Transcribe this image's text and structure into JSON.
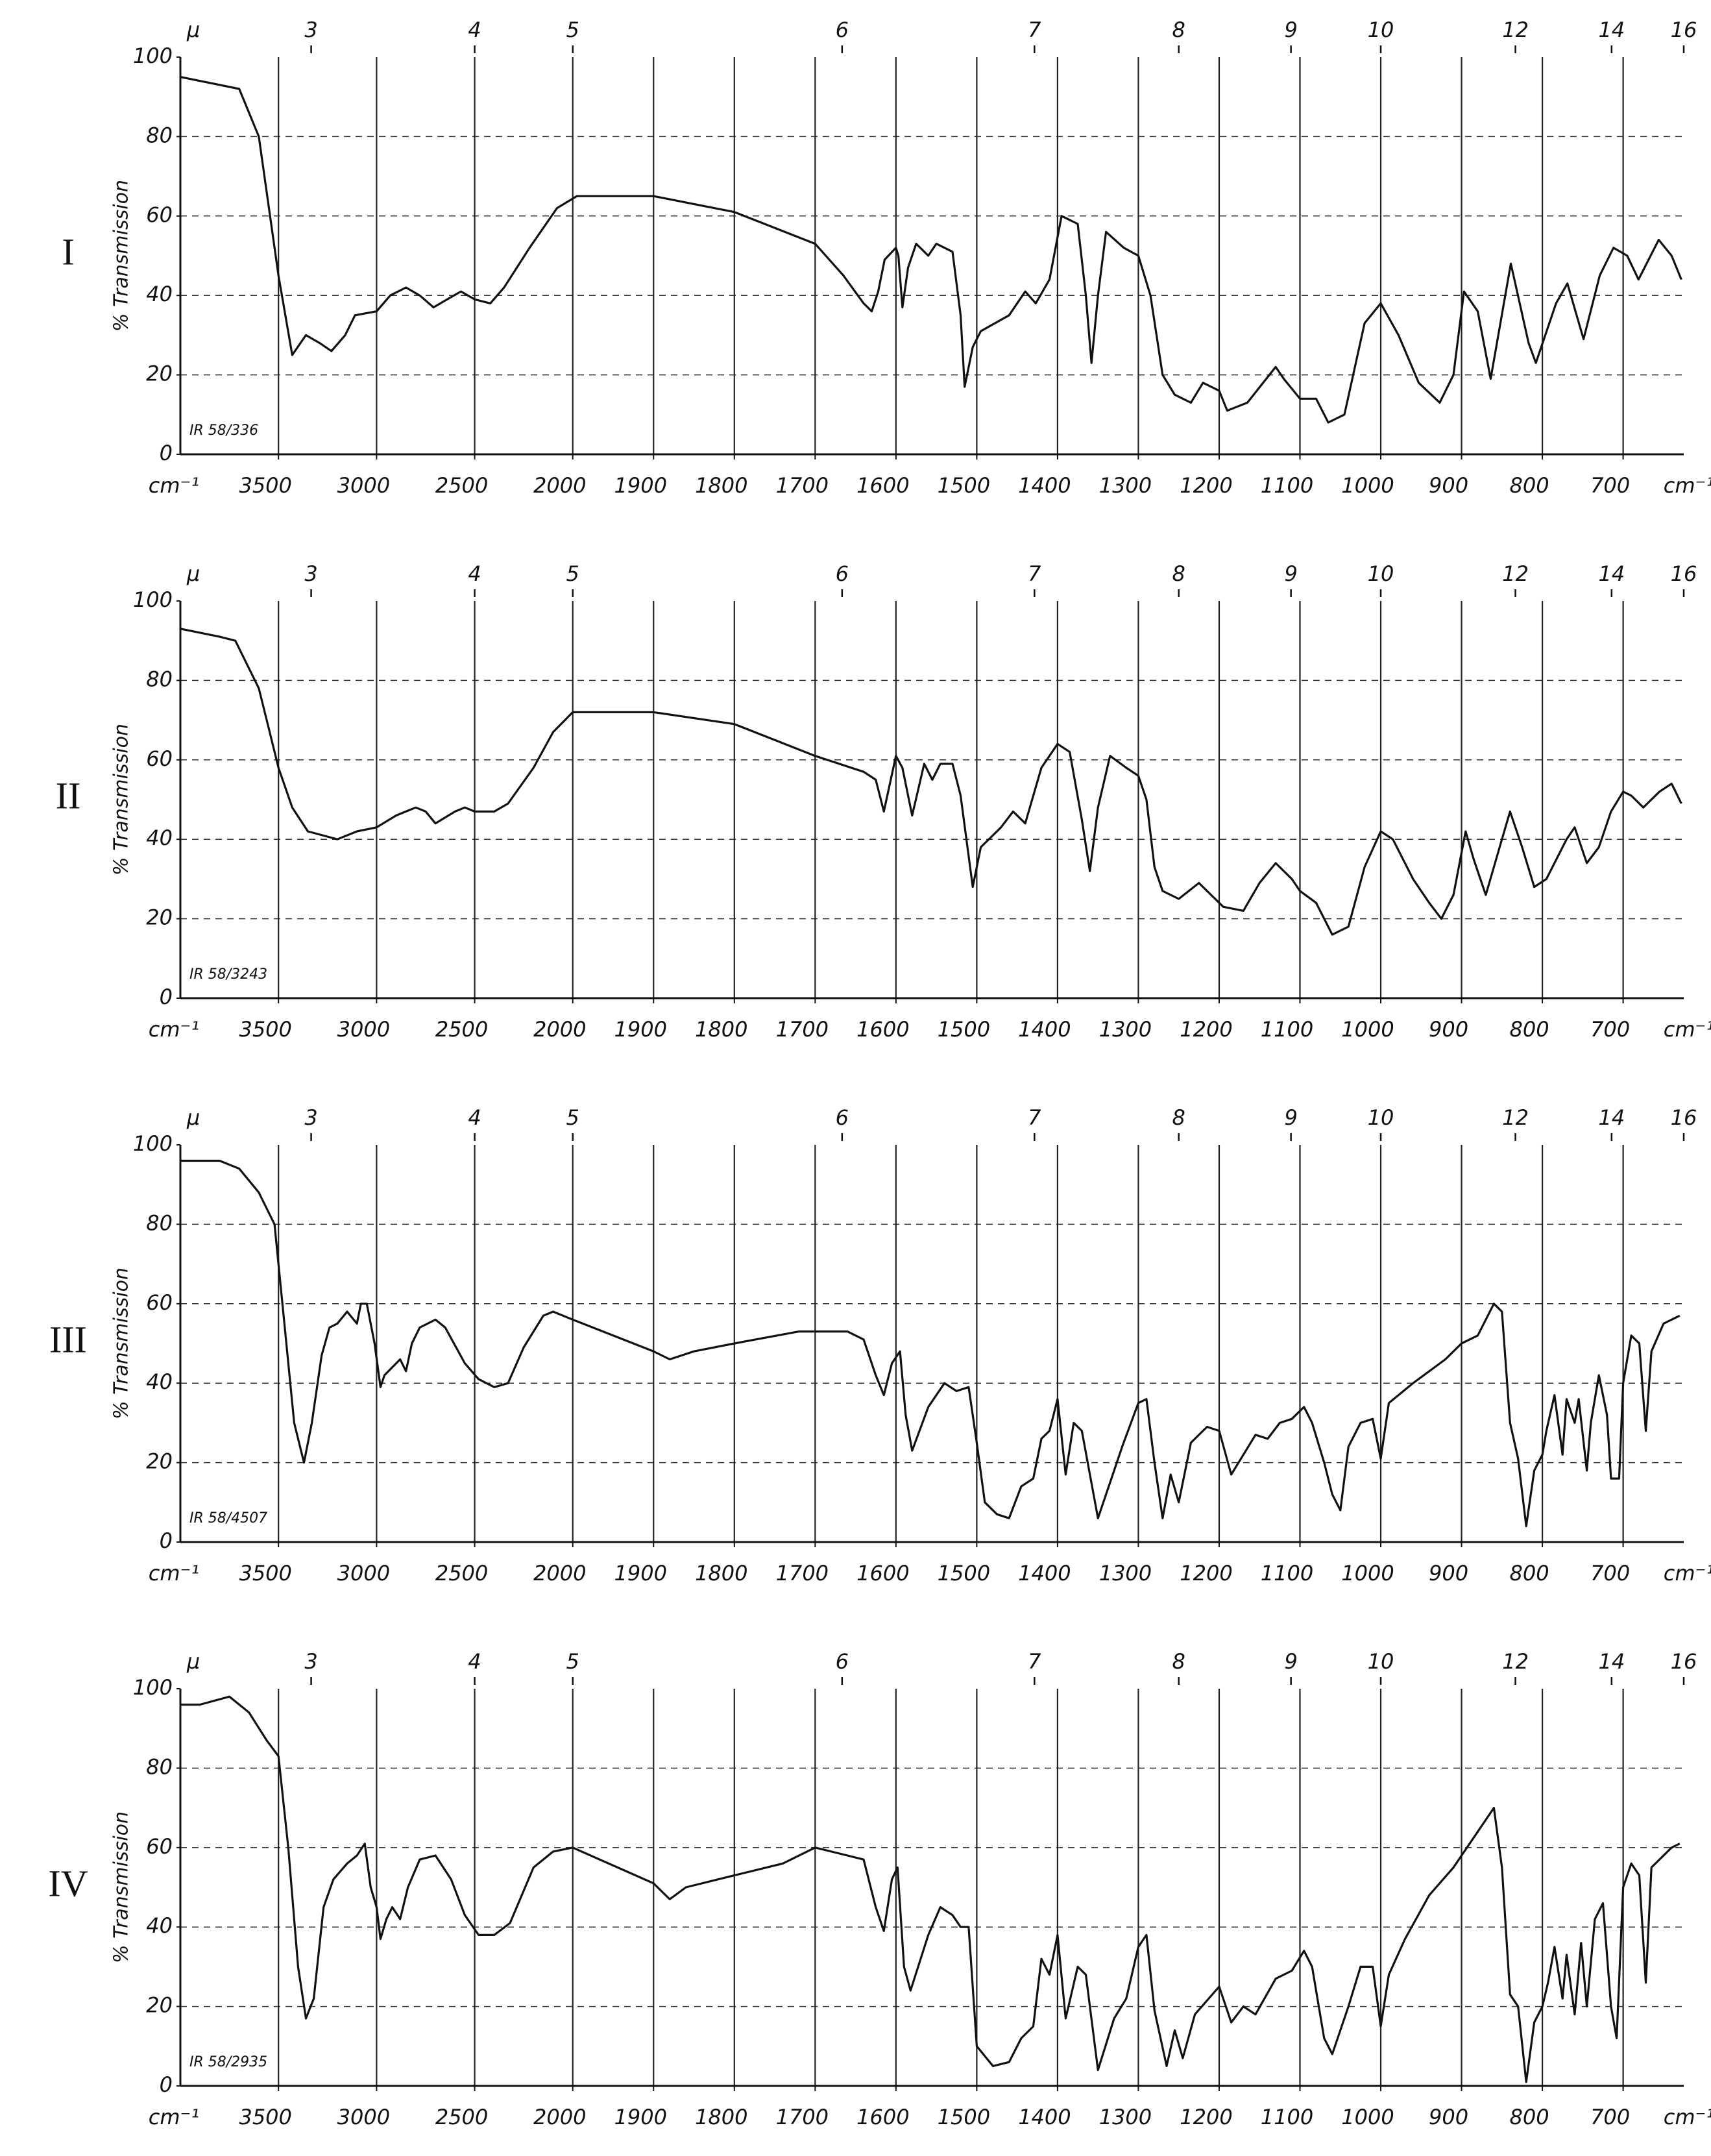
{
  "chart_data": [
    {
      "type": "line",
      "title": "I",
      "ylabel": "% Transmission",
      "xlabel": "cm⁻¹",
      "x2label": "μ",
      "annotation": "IR 58/336",
      "color": "#111111",
      "grid": true,
      "xlim": [
        4000,
        625
      ],
      "xbreak": 2000,
      "xticks": [
        3500,
        3000,
        2500,
        2000,
        1900,
        1800,
        1700,
        1600,
        1500,
        1400,
        1300,
        1200,
        1100,
        1000,
        900,
        800,
        700
      ],
      "x2lim": [
        2.5,
        16
      ],
      "x2ticks": [
        3,
        4,
        5,
        6,
        7,
        8,
        9,
        10,
        12,
        14,
        16
      ],
      "ylim": [
        0,
        100
      ],
      "yticks": [
        0,
        20,
        40,
        60,
        80,
        100
      ],
      "x": [
        4000,
        3900,
        3800,
        3700,
        3600,
        3500,
        3430,
        3360,
        3290,
        3230,
        3160,
        3110,
        3000,
        2930,
        2850,
        2780,
        2710,
        2640,
        2570,
        2500,
        2420,
        2350,
        2220,
        2080,
        1995,
        1900,
        1850,
        1800,
        1700,
        1665,
        1640,
        1630,
        1622,
        1614,
        1600,
        1597,
        1592,
        1585,
        1575,
        1560,
        1550,
        1530,
        1520,
        1515,
        1505,
        1495,
        1460,
        1440,
        1427,
        1410,
        1395,
        1375,
        1365,
        1358,
        1350,
        1340,
        1318,
        1300,
        1285,
        1270,
        1255,
        1235,
        1220,
        1200,
        1190,
        1165,
        1130,
        1120,
        1100,
        1080,
        1065,
        1045,
        1020,
        1000,
        978,
        953,
        927,
        910,
        897,
        880,
        864,
        839,
        817,
        808,
        783,
        769,
        749,
        729,
        712,
        695,
        681,
        656,
        640,
        628
      ],
      "values": [
        95,
        94,
        93,
        92,
        80,
        45,
        25,
        30,
        28,
        26,
        30,
        35,
        36,
        40,
        42,
        40,
        37,
        39,
        41,
        39,
        38,
        42,
        52,
        62,
        65,
        65,
        63,
        61,
        53,
        45,
        38,
        36,
        41,
        49,
        52,
        50,
        37,
        47,
        53,
        50,
        53,
        51,
        35,
        17,
        27,
        31,
        35,
        41,
        38,
        44,
        60,
        58,
        40,
        23,
        40,
        56,
        52,
        50,
        40,
        20,
        15,
        13,
        18,
        16,
        11,
        13,
        22,
        19,
        14,
        14,
        8,
        10,
        33,
        38,
        30,
        18,
        13,
        20,
        41,
        36,
        19,
        48,
        28,
        23,
        38,
        43,
        29,
        45,
        52,
        50,
        44,
        54,
        50,
        44
      ]
    },
    {
      "type": "line",
      "title": "II",
      "ylabel": "% Transmission",
      "xlabel": "cm⁻¹",
      "x2label": "μ",
      "annotation": "IR 58/3243",
      "color": "#111111",
      "grid": true,
      "xlim": [
        4000,
        625
      ],
      "xbreak": 2000,
      "xticks": [
        3500,
        3000,
        2500,
        2000,
        1900,
        1800,
        1700,
        1600,
        1500,
        1400,
        1300,
        1200,
        1100,
        1000,
        900,
        800,
        700
      ],
      "x2lim": [
        2.5,
        16
      ],
      "x2ticks": [
        3,
        4,
        5,
        6,
        7,
        8,
        9,
        10,
        12,
        14,
        16
      ],
      "ylim": [
        0,
        100
      ],
      "yticks": [
        0,
        20,
        40,
        60,
        80,
        100
      ],
      "x": [
        4000,
        3800,
        3720,
        3600,
        3550,
        3500,
        3430,
        3350,
        3200,
        3100,
        3000,
        2900,
        2800,
        2750,
        2700,
        2600,
        2550,
        2500,
        2400,
        2330,
        2200,
        2100,
        2000,
        1900,
        1800,
        1700,
        1640,
        1625,
        1615,
        1600,
        1592,
        1580,
        1565,
        1555,
        1545,
        1530,
        1520,
        1505,
        1495,
        1470,
        1455,
        1440,
        1420,
        1400,
        1385,
        1370,
        1360,
        1350,
        1335,
        1315,
        1300,
        1290,
        1280,
        1270,
        1250,
        1225,
        1210,
        1195,
        1170,
        1150,
        1130,
        1110,
        1100,
        1080,
        1060,
        1040,
        1020,
        1000,
        985,
        960,
        940,
        925,
        910,
        895,
        885,
        870,
        850,
        840,
        825,
        810,
        795,
        770,
        760,
        745,
        730,
        715,
        700,
        690,
        675,
        655,
        640,
        628
      ],
      "values": [
        93,
        91,
        90,
        78,
        68,
        58,
        48,
        42,
        40,
        42,
        43,
        46,
        48,
        47,
        44,
        47,
        48,
        47,
        47,
        49,
        58,
        67,
        72,
        72,
        69,
        61,
        57,
        55,
        47,
        61,
        58,
        46,
        59,
        55,
        59,
        59,
        51,
        28,
        38,
        43,
        47,
        44,
        58,
        64,
        62,
        45,
        32,
        48,
        61,
        58,
        56,
        50,
        33,
        27,
        25,
        29,
        26,
        23,
        22,
        29,
        34,
        30,
        27,
        24,
        16,
        18,
        33,
        42,
        40,
        30,
        24,
        20,
        26,
        42,
        35,
        26,
        40,
        47,
        38,
        28,
        30,
        40,
        43,
        34,
        38,
        47,
        52,
        51,
        48,
        52,
        54,
        49
      ]
    },
    {
      "type": "line",
      "title": "III",
      "ylabel": "% Transmission",
      "xlabel": "cm⁻¹",
      "x2label": "μ",
      "annotation": "IR 58/4507",
      "color": "#111111",
      "grid": true,
      "xlim": [
        4000,
        625
      ],
      "xbreak": 2000,
      "xticks": [
        3500,
        3000,
        2500,
        2000,
        1900,
        1800,
        1700,
        1600,
        1500,
        1400,
        1300,
        1200,
        1100,
        1000,
        900,
        800,
        700
      ],
      "x2lim": [
        2.5,
        16
      ],
      "x2ticks": [
        3,
        4,
        5,
        6,
        7,
        8,
        9,
        10,
        12,
        14,
        16
      ],
      "ylim": [
        0,
        100
      ],
      "yticks": [
        0,
        20,
        40,
        60,
        80,
        100
      ],
      "x": [
        4000,
        3800,
        3700,
        3600,
        3520,
        3470,
        3420,
        3370,
        3330,
        3280,
        3240,
        3200,
        3150,
        3100,
        3080,
        3050,
        3010,
        2980,
        2960,
        2920,
        2880,
        2850,
        2820,
        2780,
        2700,
        2650,
        2550,
        2480,
        2400,
        2330,
        2250,
        2150,
        2100,
        2000,
        1900,
        1880,
        1850,
        1800,
        1720,
        1660,
        1640,
        1625,
        1615,
        1605,
        1595,
        1588,
        1580,
        1560,
        1540,
        1525,
        1510,
        1500,
        1490,
        1475,
        1460,
        1445,
        1430,
        1420,
        1410,
        1400,
        1390,
        1380,
        1370,
        1350,
        1330,
        1320,
        1300,
        1290,
        1280,
        1270,
        1260,
        1250,
        1235,
        1215,
        1200,
        1185,
        1170,
        1155,
        1140,
        1125,
        1110,
        1095,
        1085,
        1070,
        1060,
        1050,
        1040,
        1025,
        1010,
        1000,
        990,
        960,
        920,
        900,
        880,
        860,
        850,
        840,
        830,
        820,
        810,
        800,
        795,
        785,
        775,
        770,
        760,
        755,
        745,
        740,
        730,
        720,
        715,
        705,
        700,
        690,
        680,
        672,
        665,
        650,
        630
      ],
      "values": [
        96,
        96,
        94,
        88,
        80,
        55,
        30,
        20,
        30,
        47,
        54,
        55,
        58,
        55,
        60,
        60,
        50,
        39,
        42,
        44,
        46,
        43,
        50,
        54,
        56,
        54,
        45,
        41,
        39,
        40,
        49,
        57,
        58,
        56,
        48,
        46,
        48,
        50,
        53,
        53,
        51,
        42,
        37,
        45,
        48,
        32,
        23,
        34,
        40,
        38,
        39,
        25,
        10,
        7,
        6,
        14,
        16,
        26,
        28,
        36,
        17,
        30,
        28,
        6,
        18,
        24,
        35,
        36,
        20,
        6,
        17,
        10,
        25,
        29,
        28,
        17,
        22,
        27,
        26,
        30,
        31,
        34,
        30,
        20,
        12,
        8,
        24,
        30,
        31,
        21,
        35,
        40,
        46,
        50,
        52,
        60,
        58,
        30,
        21,
        4,
        18,
        22,
        28,
        37,
        22,
        36,
        30,
        36,
        18,
        30,
        42,
        32,
        16,
        16,
        40,
        52,
        50,
        28,
        48,
        55,
        57
      ]
    },
    {
      "type": "line",
      "title": "IV",
      "ylabel": "% Transmission",
      "xlabel": "cm⁻¹",
      "x2label": "μ",
      "annotation": "IR 58/2935",
      "color": "#111111",
      "grid": true,
      "xlim": [
        4000,
        625
      ],
      "xbreak": 2000,
      "xticks": [
        3500,
        3000,
        2500,
        2000,
        1900,
        1800,
        1700,
        1600,
        1500,
        1400,
        1300,
        1200,
        1100,
        1000,
        900,
        800,
        700
      ],
      "x2lim": [
        2.5,
        16
      ],
      "x2ticks": [
        3,
        4,
        5,
        6,
        7,
        8,
        9,
        10,
        12,
        14,
        16
      ],
      "ylim": [
        0,
        100
      ],
      "yticks": [
        0,
        20,
        40,
        60,
        80,
        100
      ],
      "x": [
        4000,
        3900,
        3750,
        3650,
        3560,
        3500,
        3450,
        3400,
        3360,
        3320,
        3270,
        3220,
        3150,
        3100,
        3060,
        3030,
        3000,
        2980,
        2950,
        2920,
        2880,
        2840,
        2780,
        2700,
        2620,
        2550,
        2480,
        2400,
        2320,
        2200,
        2100,
        2000,
        1900,
        1880,
        1860,
        1800,
        1740,
        1700,
        1660,
        1640,
        1625,
        1615,
        1605,
        1598,
        1590,
        1582,
        1560,
        1545,
        1530,
        1520,
        1510,
        1500,
        1480,
        1460,
        1445,
        1430,
        1420,
        1410,
        1400,
        1390,
        1375,
        1365,
        1350,
        1330,
        1315,
        1300,
        1290,
        1280,
        1265,
        1255,
        1245,
        1230,
        1200,
        1185,
        1170,
        1155,
        1130,
        1110,
        1095,
        1085,
        1070,
        1060,
        1040,
        1025,
        1010,
        1000,
        990,
        970,
        940,
        910,
        880,
        860,
        850,
        840,
        830,
        820,
        810,
        800,
        793,
        785,
        775,
        770,
        760,
        752,
        745,
        735,
        725,
        715,
        708,
        700,
        690,
        680,
        672,
        665,
        650,
        640,
        630
      ],
      "values": [
        96,
        96,
        98,
        94,
        87,
        83,
        60,
        30,
        17,
        22,
        45,
        52,
        56,
        58,
        61,
        50,
        45,
        37,
        42,
        45,
        42,
        50,
        57,
        58,
        52,
        43,
        38,
        38,
        41,
        55,
        59,
        60,
        51,
        47,
        50,
        53,
        56,
        60,
        58,
        57,
        45,
        39,
        52,
        55,
        30,
        24,
        38,
        45,
        43,
        40,
        40,
        10,
        5,
        6,
        12,
        15,
        32,
        28,
        38,
        17,
        30,
        28,
        4,
        17,
        22,
        35,
        38,
        19,
        5,
        14,
        7,
        18,
        25,
        16,
        20,
        18,
        27,
        29,
        34,
        30,
        12,
        8,
        20,
        30,
        30,
        15,
        28,
        37,
        48,
        55,
        64,
        70,
        55,
        23,
        20,
        1,
        16,
        20,
        26,
        35,
        22,
        33,
        18,
        36,
        20,
        42,
        46,
        20,
        12,
        50,
        56,
        53,
        26,
        55,
        58,
        60,
        61
      ]
    }
  ]
}
